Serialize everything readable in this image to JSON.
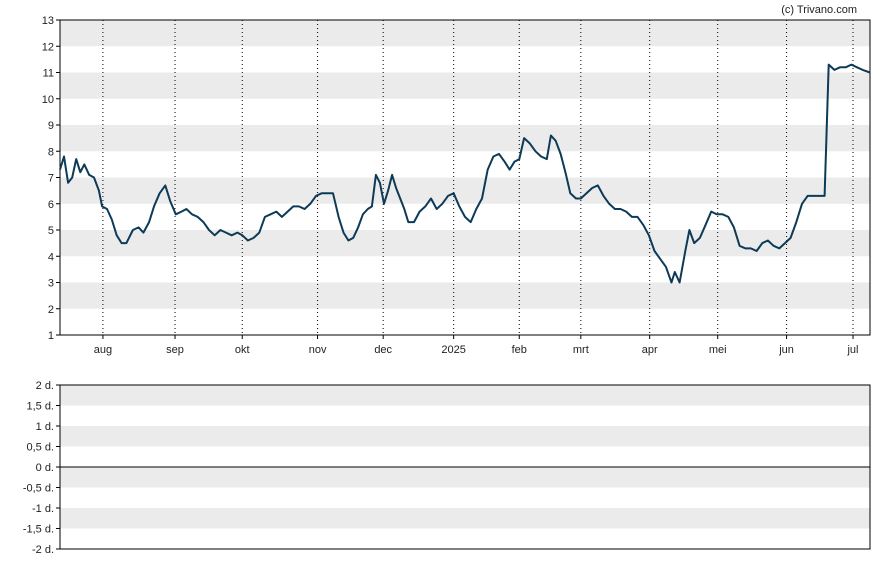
{
  "copyright": "(c) Trivano.com",
  "chart_data": [
    {
      "type": "line",
      "ylim": [
        1,
        13
      ],
      "y_ticks": [
        "1",
        "2",
        "3",
        "4",
        "5",
        "6",
        "7",
        "8",
        "9",
        "10",
        "11",
        "12",
        "13"
      ],
      "x_ticks": [
        {
          "label": "aug",
          "t": 0.053
        },
        {
          "label": "sep",
          "t": 0.142
        },
        {
          "label": "okt",
          "t": 0.225
        },
        {
          "label": "nov",
          "t": 0.318
        },
        {
          "label": "dec",
          "t": 0.399
        },
        {
          "label": "2025",
          "t": 0.486
        },
        {
          "label": "feb",
          "t": 0.567
        },
        {
          "label": "mrt",
          "t": 0.643
        },
        {
          "label": "apr",
          "t": 0.728
        },
        {
          "label": "mei",
          "t": 0.812
        },
        {
          "label": "jun",
          "t": 0.897
        },
        {
          "label": "jul",
          "t": 0.979
        }
      ],
      "grid": "alternating bands",
      "series": [
        {
          "color": "#0d3a57",
          "points": [
            [
              0.0,
              7.3
            ],
            [
              0.005,
              7.8
            ],
            [
              0.01,
              6.8
            ],
            [
              0.015,
              7.0
            ],
            [
              0.02,
              7.7
            ],
            [
              0.025,
              7.2
            ],
            [
              0.03,
              7.5
            ],
            [
              0.036,
              7.1
            ],
            [
              0.042,
              7.0
            ],
            [
              0.048,
              6.5
            ],
            [
              0.052,
              5.9
            ],
            [
              0.058,
              5.8
            ],
            [
              0.064,
              5.4
            ],
            [
              0.07,
              4.8
            ],
            [
              0.076,
              4.5
            ],
            [
              0.082,
              4.5
            ],
            [
              0.09,
              5.0
            ],
            [
              0.097,
              5.1
            ],
            [
              0.103,
              4.9
            ],
            [
              0.11,
              5.3
            ],
            [
              0.116,
              5.9
            ],
            [
              0.123,
              6.4
            ],
            [
              0.13,
              6.7
            ],
            [
              0.136,
              6.1
            ],
            [
              0.143,
              5.6
            ],
            [
              0.15,
              5.7
            ],
            [
              0.156,
              5.8
            ],
            [
              0.163,
              5.6
            ],
            [
              0.17,
              5.5
            ],
            [
              0.177,
              5.3
            ],
            [
              0.184,
              5.0
            ],
            [
              0.191,
              4.8
            ],
            [
              0.198,
              5.0
            ],
            [
              0.205,
              4.9
            ],
            [
              0.212,
              4.8
            ],
            [
              0.219,
              4.9
            ],
            [
              0.225,
              4.8
            ],
            [
              0.232,
              4.6
            ],
            [
              0.239,
              4.7
            ],
            [
              0.246,
              4.9
            ],
            [
              0.253,
              5.5
            ],
            [
              0.26,
              5.6
            ],
            [
              0.267,
              5.7
            ],
            [
              0.274,
              5.5
            ],
            [
              0.281,
              5.7
            ],
            [
              0.288,
              5.9
            ],
            [
              0.295,
              5.9
            ],
            [
              0.302,
              5.8
            ],
            [
              0.309,
              6.0
            ],
            [
              0.316,
              6.3
            ],
            [
              0.323,
              6.4
            ],
            [
              0.33,
              6.4
            ],
            [
              0.337,
              6.4
            ],
            [
              0.344,
              5.5
            ],
            [
              0.35,
              4.9
            ],
            [
              0.356,
              4.6
            ],
            [
              0.362,
              4.7
            ],
            [
              0.368,
              5.1
            ],
            [
              0.374,
              5.6
            ],
            [
              0.38,
              5.8
            ],
            [
              0.385,
              5.9
            ],
            [
              0.39,
              7.1
            ],
            [
              0.395,
              6.8
            ],
            [
              0.4,
              6.0
            ],
            [
              0.405,
              6.5
            ],
            [
              0.41,
              7.1
            ],
            [
              0.415,
              6.6
            ],
            [
              0.42,
              6.2
            ],
            [
              0.425,
              5.8
            ],
            [
              0.43,
              5.3
            ],
            [
              0.437,
              5.3
            ],
            [
              0.444,
              5.7
            ],
            [
              0.451,
              5.9
            ],
            [
              0.458,
              6.2
            ],
            [
              0.465,
              5.8
            ],
            [
              0.472,
              6.0
            ],
            [
              0.479,
              6.3
            ],
            [
              0.486,
              6.4
            ],
            [
              0.493,
              5.9
            ],
            [
              0.5,
              5.5
            ],
            [
              0.507,
              5.3
            ],
            [
              0.514,
              5.8
            ],
            [
              0.521,
              6.2
            ],
            [
              0.528,
              7.3
            ],
            [
              0.535,
              7.8
            ],
            [
              0.542,
              7.9
            ],
            [
              0.549,
              7.6
            ],
            [
              0.555,
              7.3
            ],
            [
              0.561,
              7.6
            ],
            [
              0.567,
              7.7
            ],
            [
              0.573,
              8.5
            ],
            [
              0.58,
              8.3
            ],
            [
              0.587,
              8.0
            ],
            [
              0.594,
              7.8
            ],
            [
              0.601,
              7.7
            ],
            [
              0.606,
              8.6
            ],
            [
              0.612,
              8.4
            ],
            [
              0.618,
              7.9
            ],
            [
              0.624,
              7.2
            ],
            [
              0.63,
              6.4
            ],
            [
              0.637,
              6.2
            ],
            [
              0.643,
              6.2
            ],
            [
              0.65,
              6.4
            ],
            [
              0.657,
              6.6
            ],
            [
              0.664,
              6.7
            ],
            [
              0.671,
              6.3
            ],
            [
              0.678,
              6.0
            ],
            [
              0.685,
              5.8
            ],
            [
              0.692,
              5.8
            ],
            [
              0.699,
              5.7
            ],
            [
              0.706,
              5.5
            ],
            [
              0.713,
              5.5
            ],
            [
              0.72,
              5.2
            ],
            [
              0.727,
              4.8
            ],
            [
              0.734,
              4.2
            ],
            [
              0.741,
              3.9
            ],
            [
              0.748,
              3.6
            ],
            [
              0.755,
              3.0
            ],
            [
              0.759,
              3.4
            ],
            [
              0.765,
              3.0
            ],
            [
              0.772,
              4.2
            ],
            [
              0.777,
              5.0
            ],
            [
              0.783,
              4.5
            ],
            [
              0.79,
              4.7
            ],
            [
              0.797,
              5.2
            ],
            [
              0.804,
              5.7
            ],
            [
              0.811,
              5.6
            ],
            [
              0.818,
              5.6
            ],
            [
              0.825,
              5.5
            ],
            [
              0.832,
              5.1
            ],
            [
              0.839,
              4.4
            ],
            [
              0.846,
              4.3
            ],
            [
              0.853,
              4.3
            ],
            [
              0.86,
              4.2
            ],
            [
              0.867,
              4.5
            ],
            [
              0.874,
              4.6
            ],
            [
              0.881,
              4.4
            ],
            [
              0.888,
              4.3
            ],
            [
              0.895,
              4.5
            ],
            [
              0.902,
              4.7
            ],
            [
              0.909,
              5.3
            ],
            [
              0.916,
              6.0
            ],
            [
              0.923,
              6.3
            ],
            [
              0.93,
              6.3
            ],
            [
              0.937,
              6.3
            ],
            [
              0.944,
              6.3
            ],
            [
              0.949,
              11.3
            ],
            [
              0.956,
              11.1
            ],
            [
              0.963,
              11.2
            ],
            [
              0.97,
              11.2
            ],
            [
              0.977,
              11.3
            ],
            [
              0.984,
              11.2
            ],
            [
              0.991,
              11.1
            ],
            [
              1.0,
              11.0
            ]
          ]
        }
      ]
    },
    {
      "type": "line",
      "ylim": [
        -2,
        2
      ],
      "y_ticks": [
        "2 d.",
        "1,5 d.",
        "1 d.",
        "0,5 d.",
        "0 d.",
        "-0,5 d.",
        "-1 d.",
        "-1,5 d.",
        "-2 d."
      ],
      "baseline_tick": "0 d.",
      "grid": "alternating bands",
      "series": []
    }
  ]
}
